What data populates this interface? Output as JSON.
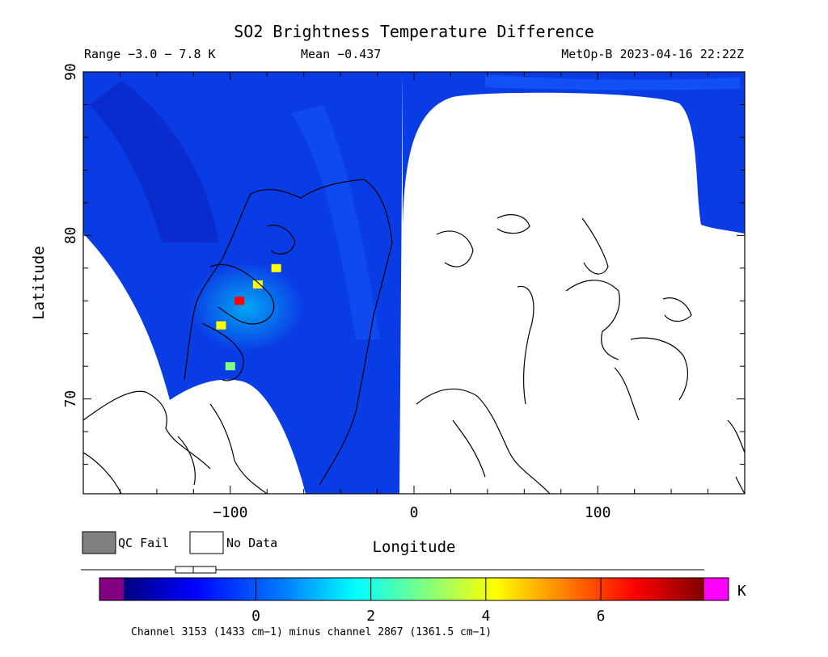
{
  "chart_data": {
    "type": "heatmap",
    "title": "SO2 Brightness Temperature Difference",
    "range_text": "Range −3.0 − 7.8 K",
    "mean_text": "Mean −0.437",
    "satellite_time": "MetOp-B 2023-04-16 22:22Z",
    "xlabel": "Longitude",
    "ylabel": "Latitude",
    "xlim": [
      -180,
      180
    ],
    "ylim": [
      64.2,
      90
    ],
    "x_ticks": [
      -100,
      0,
      100
    ],
    "y_ticks": [
      70,
      80,
      90
    ],
    "x_tick_labels": [
      "−100",
      "0",
      "100"
    ],
    "y_tick_labels": [
      "70",
      "80",
      "90"
    ],
    "legend": [
      {
        "name": "QC Fail",
        "color": "#808080"
      },
      {
        "name": "No Data",
        "color": "#ffffff"
      }
    ],
    "colorbar": {
      "min": -2.3,
      "max": 7.8,
      "unit": "K",
      "ticks": [
        0,
        2,
        4,
        6
      ],
      "tick_labels": [
        "0",
        "2",
        "4",
        "6"
      ],
      "under_color": "#800080",
      "over_color": "#ff00ff",
      "stops": [
        "#000080",
        "#0000ff",
        "#0080ff",
        "#00ffff",
        "#80ff80",
        "#ffff00",
        "#ff8000",
        "#ff0000",
        "#800000"
      ]
    },
    "footer": "Channel 3153 (1433 cm−1) minus channel 2867 (1361.5 cm−1)",
    "so2_plume": [
      {
        "lon": -75,
        "lat": 78.0,
        "value": 4.0
      },
      {
        "lon": -85,
        "lat": 77.0,
        "value": 4.5
      },
      {
        "lon": -95,
        "lat": 76.0,
        "value": 6.5
      },
      {
        "lon": -105,
        "lat": 74.5,
        "value": 4.0
      },
      {
        "lon": -100,
        "lat": 72.0,
        "value": 3.0
      }
    ]
  }
}
